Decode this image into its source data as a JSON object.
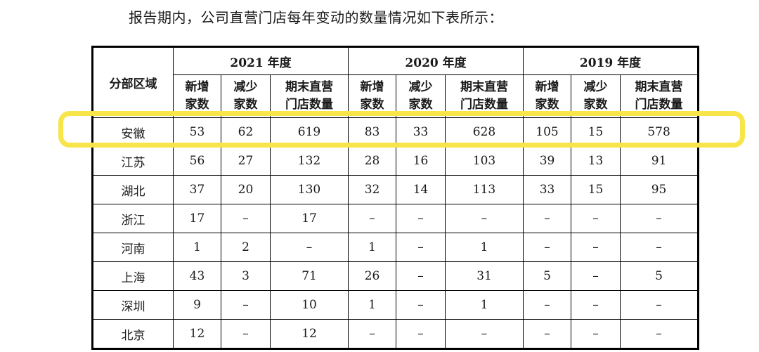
{
  "page": {
    "title": "报告期内，公司直营门店每年变动的数量情况如下表所示："
  },
  "table": {
    "region_header": "分部区域",
    "year_groups": [
      {
        "year": "2021 年度"
      },
      {
        "year": "2020 年度"
      },
      {
        "year": "2019 年度"
      }
    ],
    "subcols": [
      {
        "line1": "新增",
        "line2": "家数"
      },
      {
        "line1": "减少",
        "line2": "家数"
      },
      {
        "line1": "期末直营",
        "line2": "门店数量"
      }
    ],
    "rows": [
      {
        "region": "安徽",
        "values": [
          "53",
          "62",
          "619",
          "83",
          "33",
          "628",
          "105",
          "15",
          "578"
        ],
        "highlighted": true
      },
      {
        "region": "江苏",
        "values": [
          "56",
          "27",
          "132",
          "28",
          "16",
          "103",
          "39",
          "13",
          "91"
        ]
      },
      {
        "region": "湖北",
        "values": [
          "37",
          "20",
          "130",
          "32",
          "14",
          "113",
          "33",
          "15",
          "95"
        ]
      },
      {
        "region": "浙江",
        "values": [
          "17",
          "–",
          "17",
          "–",
          "–",
          "–",
          "–",
          "–",
          "–"
        ]
      },
      {
        "region": "河南",
        "values": [
          "1",
          "2",
          "–",
          "1",
          "–",
          "1",
          "–",
          "–",
          "–"
        ]
      },
      {
        "region": "上海",
        "values": [
          "43",
          "3",
          "71",
          "26",
          "–",
          "31",
          "5",
          "–",
          "5"
        ]
      },
      {
        "region": "深圳",
        "values": [
          "9",
          "–",
          "10",
          "1",
          "–",
          "1",
          "–",
          "–",
          "–"
        ]
      },
      {
        "region": "北京",
        "values": [
          "12",
          "–",
          "12",
          "–",
          "–",
          "–",
          "–",
          "–",
          "–"
        ]
      }
    ],
    "highlight_color": "#F7E54A",
    "border_color": "#000000",
    "text_color": "#1a1a1a"
  }
}
